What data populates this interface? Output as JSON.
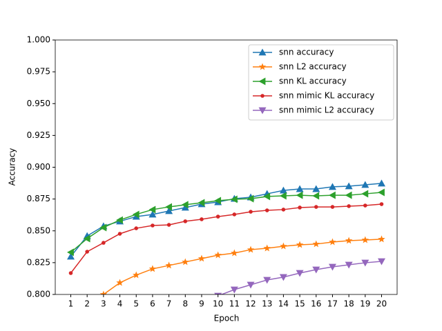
{
  "chart_data": {
    "type": "line",
    "x_label": "Epoch",
    "y_label": "Accuracy",
    "x": [
      1,
      2,
      3,
      4,
      5,
      6,
      7,
      8,
      9,
      10,
      11,
      12,
      13,
      14,
      15,
      16,
      17,
      18,
      19,
      20
    ],
    "xlim": [
      0.05,
      20.95
    ],
    "xticks": [
      1,
      2,
      3,
      4,
      5,
      6,
      7,
      8,
      9,
      10,
      11,
      12,
      13,
      14,
      15,
      16,
      17,
      18,
      19,
      20
    ],
    "ylim": [
      0.8,
      1.0
    ],
    "yticks": [
      {
        "value": 0.8,
        "label": "0.800"
      },
      {
        "value": 0.825,
        "label": "0.825"
      },
      {
        "value": 0.85,
        "label": "0.850"
      },
      {
        "value": 0.875,
        "label": "0.875"
      },
      {
        "value": 0.9,
        "label": "0.900"
      },
      {
        "value": 0.925,
        "label": "0.925"
      },
      {
        "value": 0.95,
        "label": "0.950"
      },
      {
        "value": 0.975,
        "label": "0.975"
      },
      {
        "value": 1.0,
        "label": "1.000"
      }
    ],
    "legend": "upper right",
    "series": [
      {
        "name": "snn accuracy",
        "color": "#1f77b4",
        "marker": "triangle-up",
        "values": [
          0.8298,
          0.846,
          0.8537,
          0.8575,
          0.8612,
          0.8629,
          0.8656,
          0.8683,
          0.871,
          0.8726,
          0.8753,
          0.8764,
          0.8791,
          0.8818,
          0.8829,
          0.8829,
          0.8846,
          0.8851,
          0.8862,
          0.8873
        ]
      },
      {
        "name": "snn L2 accuracy",
        "color": "#ff7f0e",
        "marker": "star",
        "values": [
          null,
          null,
          0.8,
          0.8092,
          0.8152,
          0.8201,
          0.8228,
          0.8255,
          0.8282,
          0.8309,
          0.8325,
          0.8352,
          0.8363,
          0.8379,
          0.839,
          0.8396,
          0.8412,
          0.8423,
          0.8428,
          0.8434
        ]
      },
      {
        "name": "snn KL accuracy",
        "color": "#2ca02c",
        "marker": "triangle-left",
        "values": [
          0.8331,
          0.8439,
          0.8526,
          0.8585,
          0.8629,
          0.8667,
          0.8688,
          0.8705,
          0.8721,
          0.8737,
          0.8748,
          0.8753,
          0.877,
          0.8775,
          0.878,
          0.8775,
          0.878,
          0.878,
          0.8791,
          0.8802
        ]
      },
      {
        "name": "snn mimic KL accuracy",
        "color": "#d62728",
        "marker": "point",
        "values": [
          0.8168,
          0.8336,
          0.8406,
          0.8477,
          0.852,
          0.8542,
          0.8547,
          0.8575,
          0.8591,
          0.8612,
          0.8629,
          0.865,
          0.8661,
          0.8667,
          0.8683,
          0.8688,
          0.8688,
          0.8694,
          0.8699,
          0.871
        ]
      },
      {
        "name": "snn mimic L2 accuracy",
        "color": "#9467bd",
        "marker": "triangle-down",
        "values": [
          null,
          null,
          null,
          null,
          null,
          null,
          null,
          null,
          null,
          0.7989,
          0.8038,
          0.8076,
          0.8114,
          0.8136,
          0.8168,
          0.8195,
          0.8217,
          0.8233,
          0.8249,
          0.826
        ]
      }
    ]
  }
}
